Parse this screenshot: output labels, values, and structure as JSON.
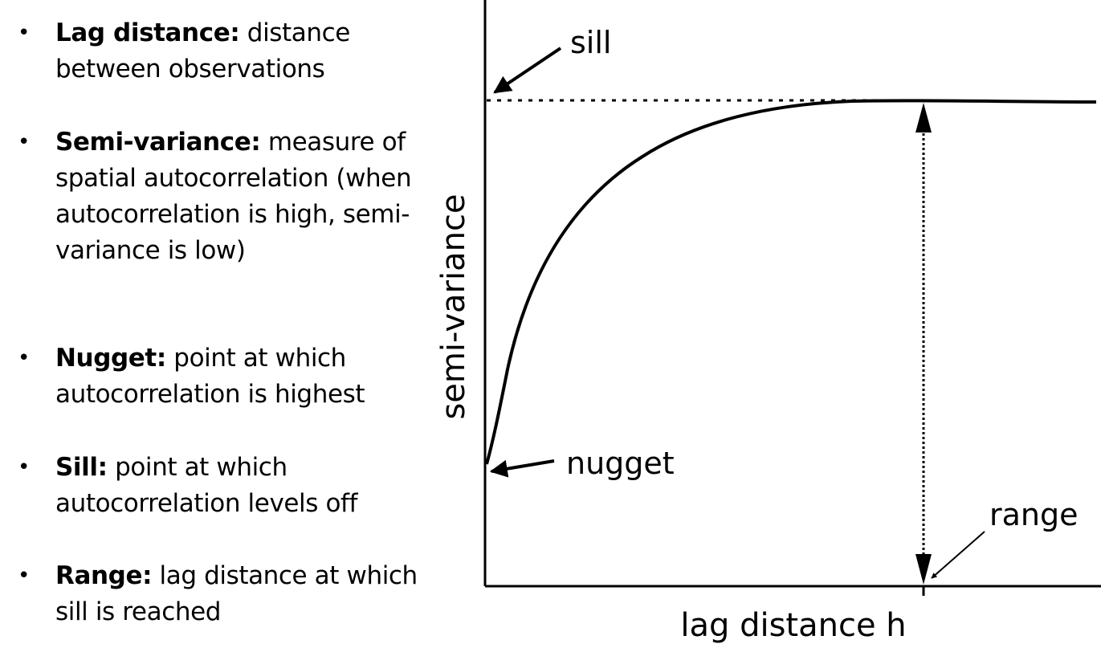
{
  "bullets": [
    {
      "term": "Lag distance:",
      "text": " distance between observations"
    },
    {
      "term": "Semi-variance:",
      "text": " measure of spatial autocorrelation (when autocorrelation is high, semi-variance is low)"
    },
    {
      "term": "Nugget:",
      "text": " point at which autocorrelation is highest"
    },
    {
      "term": "Sill:",
      "text": " point at which autocorrelation levels off"
    },
    {
      "term": "Range:",
      "text": " lag distance at which sill is reached"
    }
  ],
  "diagram": {
    "y_axis_label": "semi-variance",
    "x_axis_label": "lag distance h",
    "labels": {
      "sill": "sill",
      "nugget": "nugget",
      "range": "range"
    }
  },
  "colors": {
    "ink": "#000000",
    "background": "#ffffff"
  }
}
